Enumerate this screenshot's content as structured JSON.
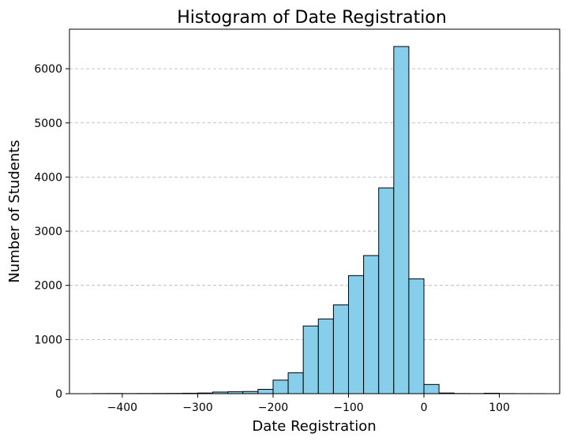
{
  "chart_data": {
    "type": "bar",
    "title": "Histogram of Date Registration",
    "xlabel": "Date Registration",
    "ylabel": "Number of Students",
    "xlim": [
      -470,
      180
    ],
    "ylim": [
      0,
      6730
    ],
    "x_ticks": [
      -400,
      -300,
      -200,
      -100,
      0,
      100
    ],
    "x_tick_labels": [
      "−400",
      "−300",
      "−200",
      "−100",
      "0",
      "100"
    ],
    "y_ticks": [
      0,
      1000,
      2000,
      3000,
      4000,
      5000,
      6000
    ],
    "y_tick_labels": [
      "0",
      "1000",
      "2000",
      "3000",
      "4000",
      "5000",
      "6000"
    ],
    "grid": "y-dashed",
    "bar_color": "#87ceeb",
    "edge_color": "#000000",
    "bins": [
      {
        "x0": -440,
        "x1": -420,
        "count": 2
      },
      {
        "x0": -420,
        "x1": -400,
        "count": 3
      },
      {
        "x0": -400,
        "x1": -380,
        "count": 2
      },
      {
        "x0": -380,
        "x1": -360,
        "count": 3
      },
      {
        "x0": -360,
        "x1": -340,
        "count": 4
      },
      {
        "x0": -340,
        "x1": -320,
        "count": 5
      },
      {
        "x0": -320,
        "x1": -300,
        "count": 8
      },
      {
        "x0": -300,
        "x1": -280,
        "count": 12
      },
      {
        "x0": -280,
        "x1": -260,
        "count": 30
      },
      {
        "x0": -260,
        "x1": -240,
        "count": 35
      },
      {
        "x0": -240,
        "x1": -220,
        "count": 40
      },
      {
        "x0": -220,
        "x1": -200,
        "count": 80
      },
      {
        "x0": -200,
        "x1": -180,
        "count": 250
      },
      {
        "x0": -180,
        "x1": -160,
        "count": 385
      },
      {
        "x0": -160,
        "x1": -140,
        "count": 1250
      },
      {
        "x0": -140,
        "x1": -120,
        "count": 1380
      },
      {
        "x0": -120,
        "x1": -100,
        "count": 1640
      },
      {
        "x0": -100,
        "x1": -80,
        "count": 2180
      },
      {
        "x0": -80,
        "x1": -60,
        "count": 2550
      },
      {
        "x0": -60,
        "x1": -40,
        "count": 3800
      },
      {
        "x0": -40,
        "x1": -20,
        "count": 6410
      },
      {
        "x0": -20,
        "x1": 0,
        "count": 2120
      },
      {
        "x0": 0,
        "x1": 20,
        "count": 170
      },
      {
        "x0": 20,
        "x1": 40,
        "count": 12
      },
      {
        "x0": 40,
        "x1": 60,
        "count": 3
      },
      {
        "x0": 60,
        "x1": 80,
        "count": 2
      },
      {
        "x0": 80,
        "x1": 100,
        "count": 8
      },
      {
        "x0": 100,
        "x1": 120,
        "count": 2
      },
      {
        "x0": 120,
        "x1": 140,
        "count": 1
      },
      {
        "x0": 140,
        "x1": 160,
        "count": 1
      }
    ]
  }
}
